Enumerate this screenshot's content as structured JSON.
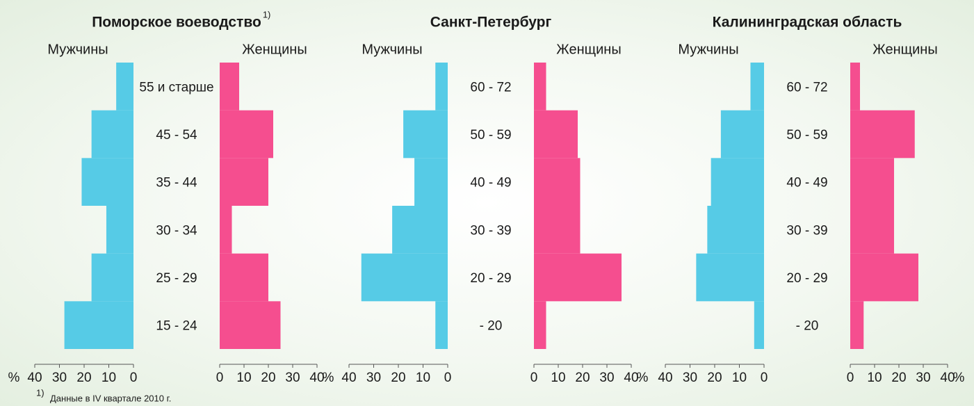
{
  "chart_data": [
    {
      "type": "bar",
      "orientation": "horizontal",
      "title": "Поморское воеводство",
      "title_note": "1)",
      "categories": [
        "55 и старше",
        "45 - 54",
        "35 - 44",
        "30 - 34",
        "25 - 29",
        "15 - 24"
      ],
      "series": [
        {
          "name": "Мужчины",
          "color": "#56cbe6",
          "values": [
            7,
            17,
            21,
            11,
            17,
            28
          ]
        },
        {
          "name": "Женщины",
          "color": "#f54e8f",
          "values": [
            8,
            22,
            20,
            5,
            20,
            25
          ]
        }
      ],
      "xlim": [
        0,
        40
      ],
      "xticks": [
        0,
        10,
        20,
        30,
        40
      ],
      "xlabel": "%"
    },
    {
      "type": "bar",
      "orientation": "horizontal",
      "title": "Санкт-Петербург",
      "categories": [
        "60 - 72",
        "50 - 59",
        "40 - 49",
        "30 - 39",
        "20 - 29",
        "- 20"
      ],
      "series": [
        {
          "name": "Мужчины",
          "color": "#56cbe6",
          "values": [
            5,
            18,
            13.5,
            22.5,
            35,
            5
          ]
        },
        {
          "name": "Женщины",
          "color": "#f54e8f",
          "values": [
            5,
            18,
            19,
            19,
            36,
            5
          ]
        }
      ],
      "xlim": [
        0,
        40
      ],
      "xticks": [
        0,
        10,
        20,
        30,
        40
      ],
      "xlabel": "%"
    },
    {
      "type": "bar",
      "orientation": "horizontal",
      "title": "Калининградская область",
      "categories": [
        "60 - 72",
        "50 - 59",
        "40 - 49",
        "30 - 39",
        "20 - 29",
        "- 20"
      ],
      "series": [
        {
          "name": "Мужчины",
          "color": "#56cbe6",
          "values": [
            5.5,
            17.5,
            21.5,
            23,
            27.5,
            4
          ]
        },
        {
          "name": "Женщины",
          "color": "#f54e8f",
          "values": [
            4,
            26.5,
            18,
            18,
            28,
            5.5
          ]
        }
      ],
      "xlim": [
        0,
        40
      ],
      "xticks": [
        0,
        10,
        20,
        30,
        40
      ],
      "xlabel": "%"
    }
  ],
  "footnote": {
    "marker": "1)",
    "text": "Данные в IV квартале 2010 г."
  }
}
